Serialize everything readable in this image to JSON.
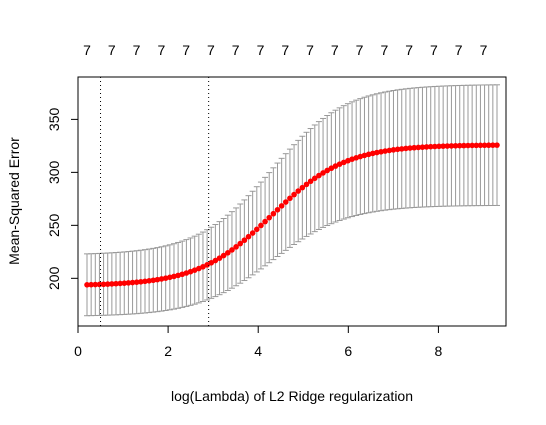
{
  "chart_data": {
    "type": "scatter",
    "title": "",
    "xlabel": "log(Lambda) of L2 Ridge regularization",
    "ylabel": "Mean-Squared Error",
    "xlim": [
      0,
      9.5
    ],
    "ylim": [
      155,
      390
    ],
    "xticks": [
      0,
      2,
      4,
      6,
      8
    ],
    "yticks": [
      200,
      250,
      300,
      350
    ],
    "top_axis_labels": [
      "7",
      "7",
      "7",
      "7",
      "7",
      "7",
      "7",
      "7",
      "7",
      "7",
      "7",
      "7",
      "7",
      "7",
      "7",
      "7",
      "7"
    ],
    "top_axis_positions": [
      0.2,
      0.75,
      1.3,
      1.85,
      2.4,
      2.95,
      3.5,
      4.05,
      4.6,
      5.15,
      5.7,
      6.25,
      6.8,
      7.35,
      7.9,
      8.45,
      9.0
    ],
    "vlines": [
      0.5,
      2.9
    ],
    "grid": false,
    "point_color": "#ff0000",
    "errorbar_color": "#999999",
    "curve": {
      "x_start": 0.2,
      "x_end": 9.3,
      "n_points": 100,
      "mse_low": 193,
      "mse_high": 326,
      "midpoint": 4.3,
      "scale": 0.82,
      "se_low": 29,
      "se_high": 57
    }
  }
}
